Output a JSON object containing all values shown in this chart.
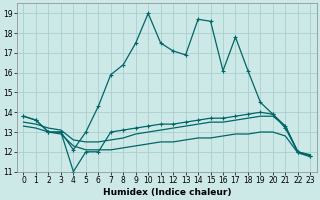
{
  "xlabel": "Humidex (Indice chaleur)",
  "background_color": "#cce9e8",
  "grid_color": "#aacfcf",
  "line_color": "#006666",
  "xlim": [
    -0.5,
    23.5
  ],
  "ylim": [
    11,
    19.5
  ],
  "yticks": [
    11,
    12,
    13,
    14,
    15,
    16,
    17,
    18,
    19
  ],
  "xticks": [
    0,
    1,
    2,
    3,
    4,
    5,
    6,
    7,
    8,
    9,
    10,
    11,
    12,
    13,
    14,
    15,
    16,
    17,
    18,
    19,
    20,
    21,
    22,
    23
  ],
  "series1_marked": {
    "x": [
      0,
      1,
      2,
      3,
      4,
      5,
      6,
      7,
      8,
      9,
      10,
      11,
      12,
      13,
      14,
      15,
      16,
      17,
      18,
      19,
      20,
      21,
      22,
      23
    ],
    "y": [
      13.8,
      13.6,
      13.0,
      13.0,
      12.1,
      13.0,
      14.3,
      15.9,
      16.4,
      17.5,
      19.0,
      17.5,
      17.1,
      16.9,
      18.7,
      18.6,
      16.1,
      17.8,
      16.1,
      14.5,
      13.9,
      13.3,
      12.0,
      11.8
    ]
  },
  "series2_marked": {
    "x": [
      0,
      1,
      2,
      3,
      4,
      5,
      6,
      7,
      8,
      9,
      10,
      11,
      12,
      13,
      14,
      15,
      16,
      17,
      18,
      19,
      20,
      21,
      22,
      23
    ],
    "y": [
      13.8,
      13.6,
      13.0,
      13.0,
      11.0,
      12.0,
      12.0,
      13.0,
      13.1,
      13.2,
      13.3,
      13.4,
      13.4,
      13.5,
      13.6,
      13.7,
      13.7,
      13.8,
      13.9,
      14.0,
      13.9,
      13.2,
      12.0,
      11.8
    ]
  },
  "series3_plain": {
    "x": [
      0,
      1,
      2,
      3,
      4,
      5,
      6,
      7,
      8,
      9,
      10,
      11,
      12,
      13,
      14,
      15,
      16,
      17,
      18,
      19,
      20,
      21,
      22,
      23
    ],
    "y": [
      13.5,
      13.4,
      13.2,
      13.1,
      12.6,
      12.5,
      12.5,
      12.6,
      12.7,
      12.9,
      13.0,
      13.1,
      13.2,
      13.3,
      13.4,
      13.5,
      13.5,
      13.6,
      13.7,
      13.8,
      13.8,
      13.3,
      12.0,
      11.85
    ]
  },
  "series4_plain": {
    "x": [
      0,
      1,
      2,
      3,
      4,
      5,
      6,
      7,
      8,
      9,
      10,
      11,
      12,
      13,
      14,
      15,
      16,
      17,
      18,
      19,
      20,
      21,
      22,
      23
    ],
    "y": [
      13.3,
      13.2,
      13.0,
      12.9,
      12.3,
      12.1,
      12.1,
      12.1,
      12.2,
      12.3,
      12.4,
      12.5,
      12.5,
      12.6,
      12.7,
      12.7,
      12.8,
      12.9,
      12.9,
      13.0,
      13.0,
      12.8,
      11.95,
      11.75
    ]
  }
}
